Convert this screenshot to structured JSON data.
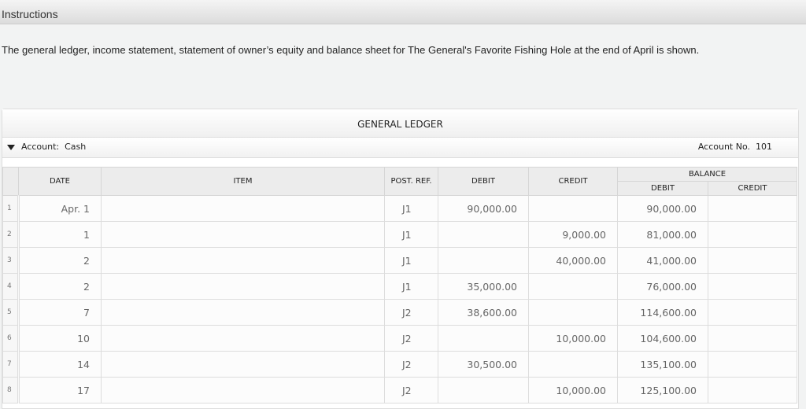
{
  "topbar": {
    "title": "Instructions"
  },
  "intro": "The general ledger, income statement, statement of owner’s equity and balance sheet for The General's Favorite Fishing Hole at the end of April is shown.",
  "ledger": {
    "title": "GENERAL LEDGER",
    "account_label": "Account:",
    "account_name": "Cash",
    "account_no": "Account No.  101",
    "headers": {
      "date": "DATE",
      "item": "ITEM",
      "post_ref": "POST. REF.",
      "debit": "DEBIT",
      "credit": "CREDIT",
      "balance": "BALANCE",
      "bal_debit": "DEBIT",
      "bal_credit": "CREDIT"
    },
    "rows": [
      {
        "n": "1",
        "date": "Apr. 1",
        "item": "",
        "ref": "J1",
        "debit": "90,000.00",
        "credit": "",
        "bal_debit": "90,000.00",
        "bal_credit": ""
      },
      {
        "n": "2",
        "date": "1",
        "item": "",
        "ref": "J1",
        "debit": "",
        "credit": "9,000.00",
        "bal_debit": "81,000.00",
        "bal_credit": ""
      },
      {
        "n": "3",
        "date": "2",
        "item": "",
        "ref": "J1",
        "debit": "",
        "credit": "40,000.00",
        "bal_debit": "41,000.00",
        "bal_credit": ""
      },
      {
        "n": "4",
        "date": "2",
        "item": "",
        "ref": "J1",
        "debit": "35,000.00",
        "credit": "",
        "bal_debit": "76,000.00",
        "bal_credit": ""
      },
      {
        "n": "5",
        "date": "7",
        "item": "",
        "ref": "J2",
        "debit": "38,600.00",
        "credit": "",
        "bal_debit": "114,600.00",
        "bal_credit": ""
      },
      {
        "n": "6",
        "date": "10",
        "item": "",
        "ref": "J2",
        "debit": "",
        "credit": "10,000.00",
        "bal_debit": "104,600.00",
        "bal_credit": ""
      },
      {
        "n": "7",
        "date": "14",
        "item": "",
        "ref": "J2",
        "debit": "30,500.00",
        "credit": "",
        "bal_debit": "135,100.00",
        "bal_credit": ""
      },
      {
        "n": "8",
        "date": "17",
        "item": "",
        "ref": "J2",
        "debit": "",
        "credit": "10,000.00",
        "bal_debit": "125,100.00",
        "bal_credit": ""
      }
    ]
  }
}
